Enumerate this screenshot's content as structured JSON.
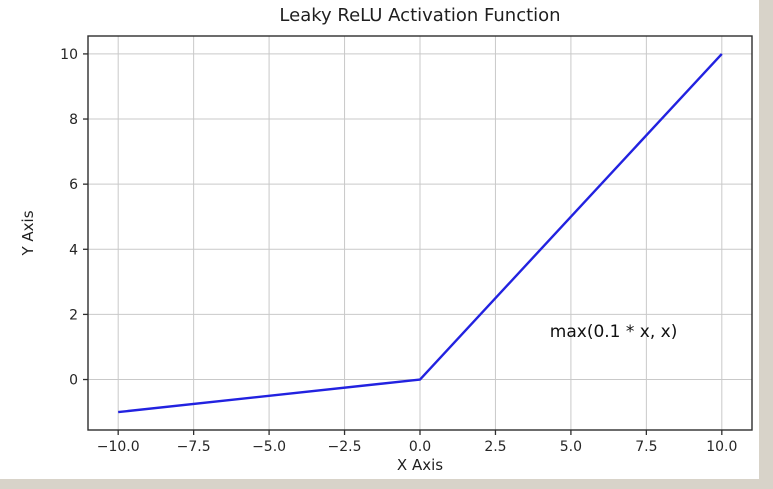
{
  "figure": {
    "background": "#ffffff",
    "page_background": "#d8d3c9"
  },
  "chart_data": {
    "type": "line",
    "title": "Leaky ReLU Activation Function",
    "xlabel": "X Axis",
    "ylabel": "Y Axis",
    "series": [
      {
        "name": "leaky-relu",
        "formula": "max(0.1 * x, x)",
        "color": "#2222e0",
        "x": [
          -10,
          0,
          10
        ],
        "y": [
          -1,
          0,
          10
        ]
      }
    ],
    "xlim": [
      -11,
      11
    ],
    "ylim": [
      -1.55,
      10.55
    ],
    "xticks": [
      -10.0,
      -7.5,
      -5.0,
      -2.5,
      0.0,
      2.5,
      5.0,
      7.5,
      10.0
    ],
    "xtick_labels": [
      "−10.0",
      "−7.5",
      "−5.0",
      "−2.5",
      "0.0",
      "2.5",
      "5.0",
      "7.5",
      "10.0"
    ],
    "yticks": [
      0,
      2,
      4,
      6,
      8,
      10
    ],
    "ytick_labels": [
      "0",
      "2",
      "4",
      "6",
      "8",
      "10"
    ],
    "grid": true,
    "grid_color": "#c9c9c9",
    "axis_color": "#2e2e2e",
    "legend": "none",
    "annotation": {
      "text": "max(0.1 * x, x)",
      "x": 4.3,
      "y": 1.3
    }
  }
}
